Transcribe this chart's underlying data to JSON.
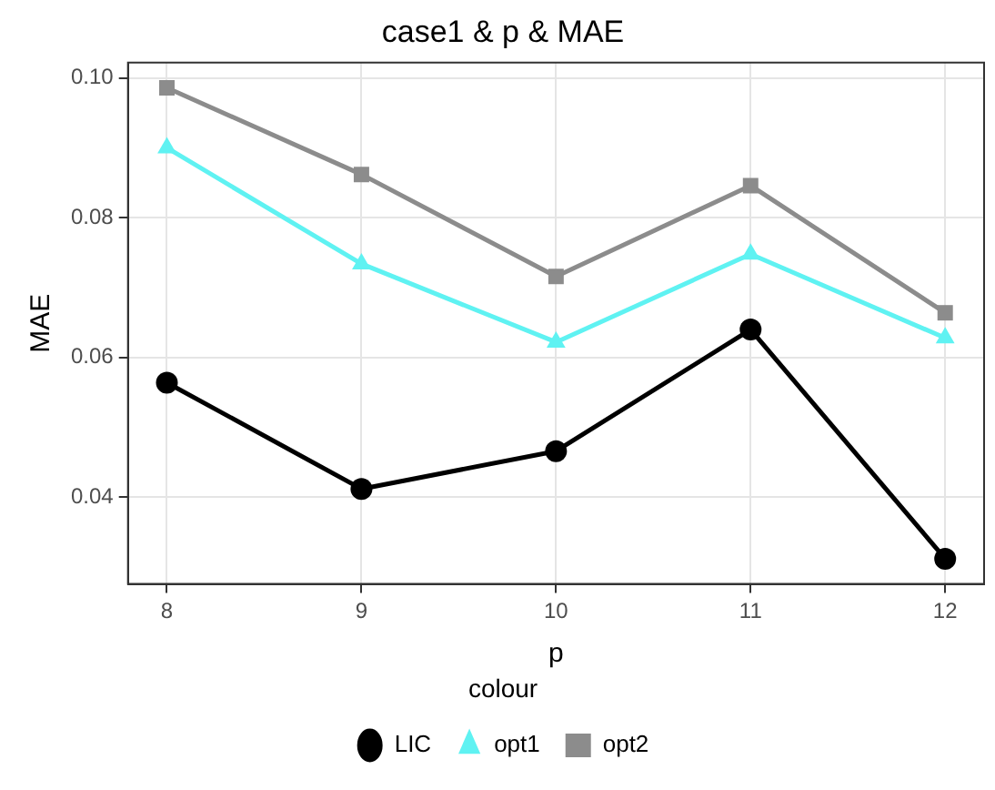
{
  "chart_data": {
    "type": "line",
    "title": "case1 & p & MAE",
    "xlabel": "p",
    "ylabel": "MAE",
    "legend_title": "colour",
    "legend": "bottom",
    "grid": true,
    "line_style": "solid",
    "x": [
      8,
      9,
      10,
      11,
      12
    ],
    "xlim": [
      7.8,
      12.2
    ],
    "xticks": [
      8,
      9,
      10,
      11,
      12
    ],
    "ylim": [
      0.0276,
      0.1022
    ],
    "yticks": [
      {
        "value": 0.04,
        "label": "0.04"
      },
      {
        "value": 0.06,
        "label": "0.06"
      },
      {
        "value": 0.08,
        "label": "0.08"
      },
      {
        "value": 0.1,
        "label": "0.10"
      }
    ],
    "series": [
      {
        "name": "LIC",
        "color": "#000000",
        "marker": "circle",
        "values": [
          0.0564,
          0.0412,
          0.0466,
          0.064,
          0.0312
        ]
      },
      {
        "name": "opt1",
        "color": "#5ff2f2",
        "marker": "triangle",
        "values": [
          0.09,
          0.0734,
          0.0622,
          0.0748,
          0.0628
        ]
      },
      {
        "name": "opt2",
        "color": "#8c8c8c",
        "marker": "square",
        "values": [
          0.0986,
          0.0862,
          0.0716,
          0.0846,
          0.0664
        ]
      }
    ]
  }
}
